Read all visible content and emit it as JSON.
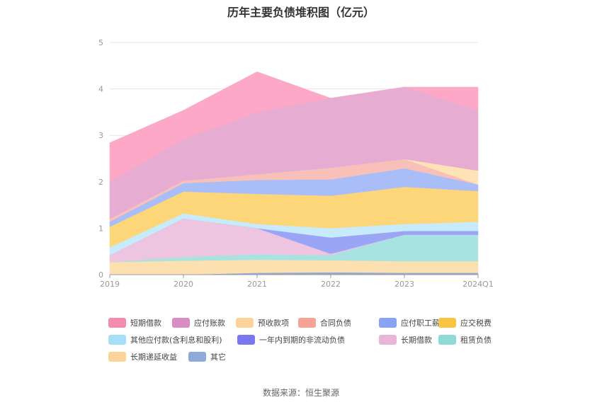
{
  "title": "历年主要负债堆积图（亿元）",
  "source": "数据来源：恒生聚源",
  "chart_data": {
    "type": "area",
    "stacked": true,
    "categories": [
      "2019",
      "2020",
      "2021",
      "2022",
      "2023",
      "2024Q1"
    ],
    "ylim": [
      0,
      5
    ],
    "yticks": [
      "0",
      "1",
      "2",
      "3",
      "4",
      "5"
    ],
    "grid": true,
    "legend_position": "bottom",
    "series": [
      {
        "name": "其它",
        "color": "#8eaad8",
        "values": [
          0.0,
          0.0,
          0.04,
          0.05,
          0.04,
          0.04
        ]
      },
      {
        "name": "长期递延收益",
        "color": "#fde0b0",
        "values": [
          0.27,
          0.3,
          0.28,
          0.26,
          0.25,
          0.25
        ]
      },
      {
        "name": "租赁负债",
        "color": "#a8e3e1",
        "values": [
          0.0,
          0.08,
          0.12,
          0.11,
          0.57,
          0.57
        ]
      },
      {
        "name": "长期借款",
        "color": "#edc5e0",
        "values": [
          0.15,
          0.83,
          0.56,
          0.03,
          0.0,
          0.0
        ]
      },
      {
        "name": "一年内到期的非流动负债",
        "color": "#9aa6f5",
        "values": [
          0.0,
          0.0,
          0.0,
          0.35,
          0.08,
          0.08
        ]
      },
      {
        "name": "其他应付款(含利息和股利)",
        "color": "#c7ebfa",
        "values": [
          0.17,
          0.11,
          0.09,
          0.2,
          0.15,
          0.2
        ]
      },
      {
        "name": "应交税费",
        "color": "#fdd679",
        "values": [
          0.44,
          0.47,
          0.65,
          0.7,
          0.8,
          0.66
        ]
      },
      {
        "name": "应付职工薪酬",
        "color": "#a9bdf8",
        "values": [
          0.11,
          0.18,
          0.3,
          0.35,
          0.4,
          0.14
        ]
      },
      {
        "name": "合同负债",
        "color": "#f8c0b8",
        "values": [
          0.06,
          0.05,
          0.12,
          0.25,
          0.2,
          0.0
        ]
      },
      {
        "name": "预收款项",
        "color": "#fde3b6",
        "values": [
          0.0,
          0.0,
          0.0,
          0.0,
          0.0,
          0.3
        ]
      },
      {
        "name": "应付账款",
        "color": "#e6acd1",
        "values": [
          0.8,
          0.9,
          1.34,
          1.5,
          1.55,
          1.3
        ]
      },
      {
        "name": "短期借款",
        "color": "#fca8c6",
        "values": [
          0.84,
          0.62,
          0.87,
          0.0,
          0.0,
          0.5
        ]
      }
    ]
  },
  "legend": [
    {
      "label": "短期借款",
      "color": "#f48cb0"
    },
    {
      "label": "应付账款",
      "color": "#d98cc2"
    },
    {
      "label": "预收款项",
      "color": "#fdd39a"
    },
    {
      "label": "合同负债",
      "color": "#f6a394"
    },
    {
      "label": "应付职工薪酬",
      "color": "#87a3f2"
    },
    {
      "label": "应交税费",
      "color": "#f9c442"
    },
    {
      "label": "其他应付款(含利息和股利)",
      "color": "#a6dff7"
    },
    {
      "label": "一年内到期的非流动负债",
      "color": "#7a78ee"
    },
    {
      "label": "长期借款",
      "color": "#e9b6d8"
    },
    {
      "label": "租赁负债",
      "color": "#8fdad5"
    },
    {
      "label": "长期递延收益",
      "color": "#fdd39a"
    },
    {
      "label": "其它",
      "color": "#8eaad8"
    }
  ]
}
